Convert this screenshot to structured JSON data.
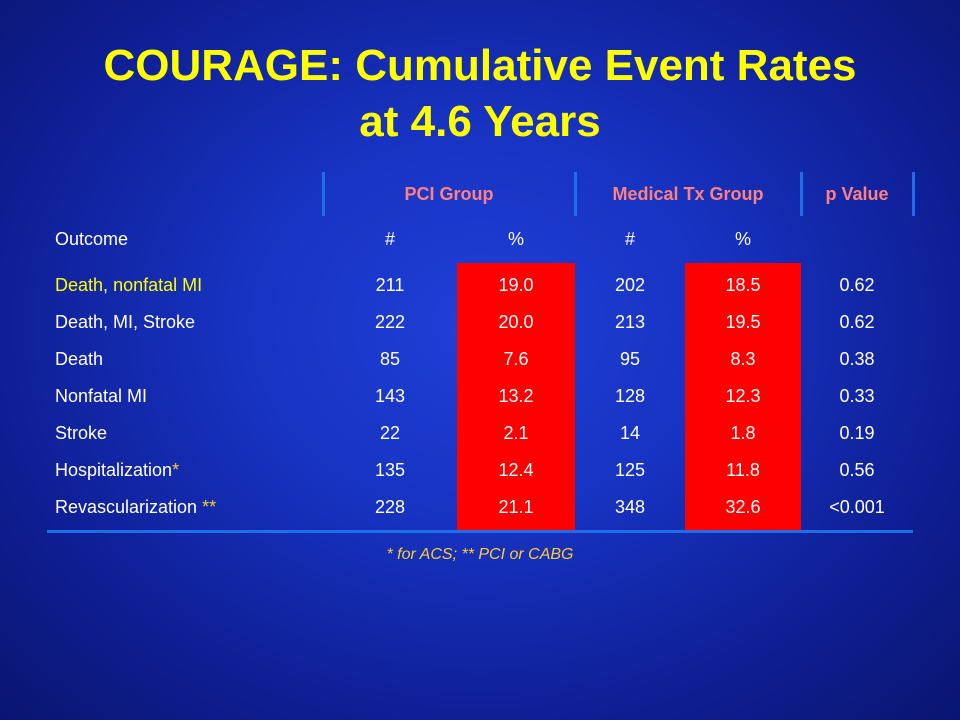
{
  "slide": {
    "title_line1": "COURAGE:  Cumulative Event Rates",
    "title_line2": "at 4.6 Years"
  },
  "table": {
    "group_headers": {
      "pci": "PCI Group",
      "medical": "Medical Tx Group",
      "pvalue": "p Value"
    },
    "sub_headers": {
      "outcome": "Outcome",
      "pci_n": "#",
      "pci_pct": "%",
      "med_n": "#",
      "med_pct": "%"
    },
    "rows": [
      {
        "outcome_a": "Death",
        "outcome_sep": ", ",
        "outcome_b": "nonfatal MI",
        "pci_n": "211",
        "pci_pct": "19.0",
        "med_n": "202",
        "med_pct": "18.5",
        "p": "0.62"
      },
      {
        "outcome": "Death, MI, Stroke",
        "pci_n": "222",
        "pci_pct": "20.0",
        "med_n": "213",
        "med_pct": "19.5",
        "p": "0.62"
      },
      {
        "outcome": "Death",
        "pci_n": "85",
        "pci_pct": "7.6",
        "med_n": "95",
        "med_pct": "8.3",
        "p": "0.38"
      },
      {
        "outcome": "Nonfatal MI",
        "pci_n": "143",
        "pci_pct": "13.2",
        "med_n": "128",
        "med_pct": "12.3",
        "p": "0.33"
      },
      {
        "outcome": "Stroke",
        "pci_n": "22",
        "pci_pct": "2.1",
        "med_n": "14",
        "med_pct": "1.8",
        "p": "0.19"
      },
      {
        "outcome": "Hospitalization",
        "outcome_mark": "*",
        "pci_n": "135",
        "pci_pct": "12.4",
        "med_n": "125",
        "med_pct": "11.8",
        "p": "0.56"
      },
      {
        "outcome": "Revascularization ",
        "outcome_mark": "**",
        "pci_n": "228",
        "pci_pct": "21.1",
        "med_n": "348",
        "med_pct": "32.6",
        "p": "<0.001"
      }
    ],
    "footnote": "* for ACS; ** PCI or CABG"
  },
  "colors": {
    "background": "#1733c2",
    "title": "#ffff00",
    "group_header_text": "#ff8080",
    "highlight_cell": "#ff0000",
    "grid_line": "#1e6ee8",
    "footnote": "#ffcc33"
  }
}
